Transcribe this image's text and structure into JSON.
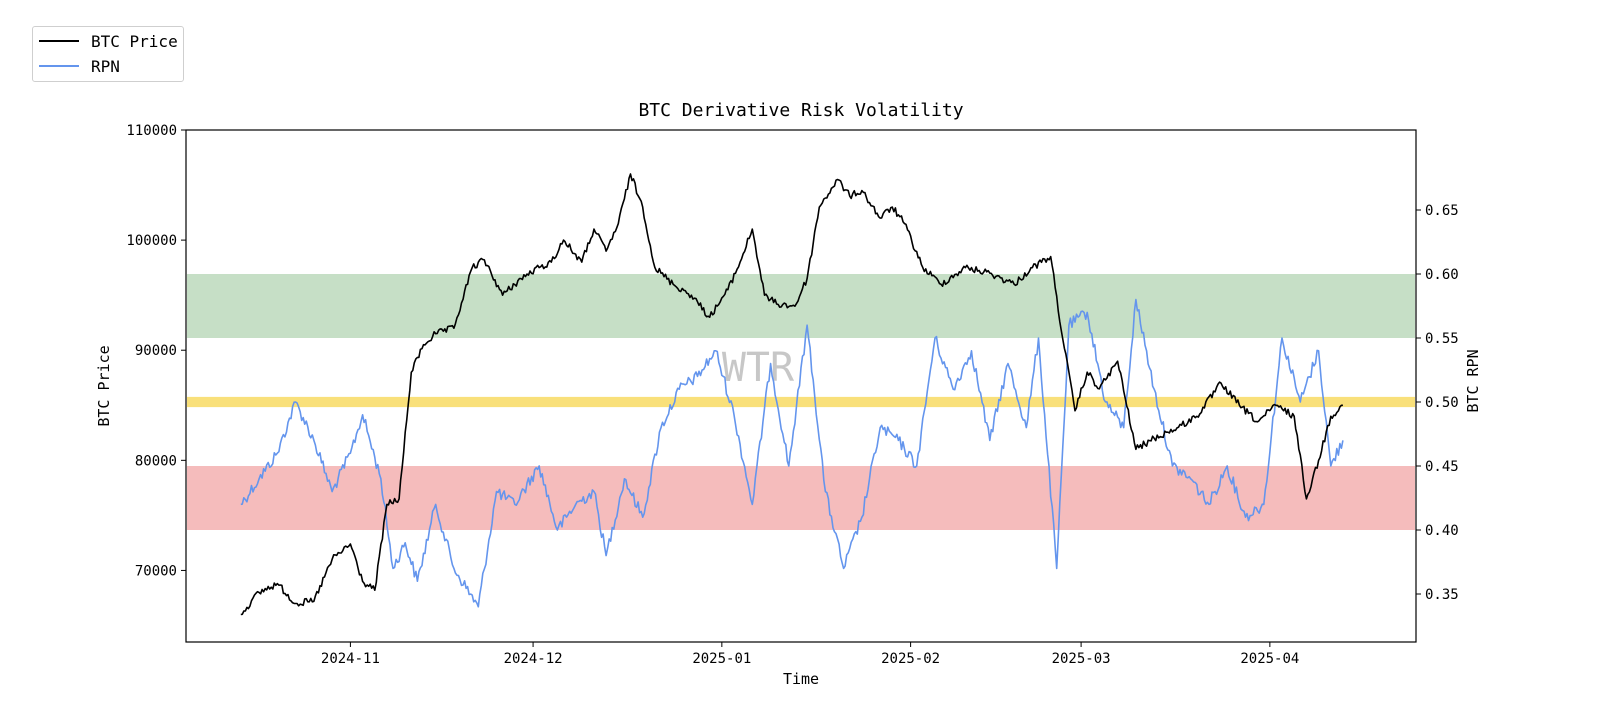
{
  "chart_data": {
    "type": "line",
    "title": "BTC Derivative Risk Volatility",
    "xlabel": "Time",
    "ylabel_left": "BTC Price",
    "ylabel_right": "BTC RPN",
    "watermark": "WTR",
    "legend_position": "top-left",
    "x_ticks": [
      "2024-11",
      "2024-12",
      "2025-01",
      "2025-02",
      "2025-03",
      "2025-04"
    ],
    "x_tick_dates": [
      "2024-11-01",
      "2024-12-01",
      "2025-01-01",
      "2025-02-01",
      "2025-03-01",
      "2025-04-01"
    ],
    "x_range": [
      "2024-10-05",
      "2025-04-25"
    ],
    "y_left": {
      "range": [
        63500,
        110000
      ],
      "ticks": [
        "70000",
        "80000",
        "90000",
        "100000",
        "110000"
      ],
      "tick_values": [
        70000,
        80000,
        90000,
        100000,
        110000
      ]
    },
    "y_right": {
      "range": [
        0.3125,
        0.7125
      ],
      "ticks": [
        "0.35",
        "0.40",
        "0.45",
        "0.50",
        "0.55",
        "0.60",
        "0.65"
      ],
      "tick_values": [
        0.35,
        0.4,
        0.45,
        0.5,
        0.55,
        0.6,
        0.65
      ]
    },
    "bands": [
      {
        "name": "green-band",
        "axis": "right",
        "from": 0.55,
        "to": 0.6,
        "color": "#c6dfc6"
      },
      {
        "name": "yellow-band",
        "axis": "right",
        "from": 0.496,
        "to": 0.504,
        "color": "#f9e07a"
      },
      {
        "name": "red-band",
        "axis": "right",
        "from": 0.4,
        "to": 0.45,
        "color": "#f5bcbc"
      }
    ],
    "series": [
      {
        "name": "BTC Price",
        "axis": "left",
        "color": "#000000",
        "x": [
          "2024-10-14",
          "2024-10-17",
          "2024-10-20",
          "2024-10-23",
          "2024-10-26",
          "2024-10-29",
          "2024-11-01",
          "2024-11-03",
          "2024-11-05",
          "2024-11-07",
          "2024-11-09",
          "2024-11-11",
          "2024-11-13",
          "2024-11-15",
          "2024-11-18",
          "2024-11-21",
          "2024-11-23",
          "2024-11-26",
          "2024-11-29",
          "2024-12-02",
          "2024-12-04",
          "2024-12-06",
          "2024-12-09",
          "2024-12-11",
          "2024-12-13",
          "2024-12-15",
          "2024-12-17",
          "2024-12-19",
          "2024-12-21",
          "2024-12-24",
          "2024-12-27",
          "2024-12-30",
          "2025-01-02",
          "2025-01-04",
          "2025-01-06",
          "2025-01-08",
          "2025-01-10",
          "2025-01-13",
          "2025-01-15",
          "2025-01-17",
          "2025-01-20",
          "2025-01-22",
          "2025-01-24",
          "2025-01-27",
          "2025-01-29",
          "2025-01-31",
          "2025-02-03",
          "2025-02-06",
          "2025-02-10",
          "2025-02-14",
          "2025-02-18",
          "2025-02-21",
          "2025-02-24",
          "2025-02-26",
          "2025-02-28",
          "2025-03-02",
          "2025-03-04",
          "2025-03-07",
          "2025-03-10",
          "2025-03-13",
          "2025-03-17",
          "2025-03-20",
          "2025-03-24",
          "2025-03-27",
          "2025-03-30",
          "2025-04-02",
          "2025-04-05",
          "2025-04-07",
          "2025-04-09",
          "2025-04-11",
          "2025-04-13"
        ],
        "values": [
          66000,
          68000,
          68800,
          67000,
          67200,
          71000,
          72400,
          69000,
          68200,
          76000,
          76500,
          88000,
          90500,
          91500,
          92000,
          97500,
          98200,
          95000,
          96500,
          97500,
          98000,
          100000,
          98000,
          101000,
          99000,
          101500,
          106000,
          103000,
          97500,
          96000,
          95000,
          93000,
          95500,
          98000,
          101000,
          95000,
          94200,
          94000,
          96500,
          103000,
          105500,
          104000,
          104500,
          102000,
          103000,
          101500,
          97500,
          96000,
          97500,
          97000,
          96000,
          97500,
          98500,
          91000,
          84500,
          88000,
          86500,
          89000,
          81000,
          82000,
          83000,
          84000,
          87000,
          85000,
          83500,
          85000,
          84000,
          76500,
          80000,
          84000,
          85000
        ]
      },
      {
        "name": "RPN",
        "axis": "right",
        "color": "#6495ed",
        "x": [
          "2024-10-14",
          "2024-10-17",
          "2024-10-20",
          "2024-10-23",
          "2024-10-26",
          "2024-10-29",
          "2024-11-01",
          "2024-11-03",
          "2024-11-06",
          "2024-11-08",
          "2024-11-10",
          "2024-11-12",
          "2024-11-15",
          "2024-11-18",
          "2024-11-22",
          "2024-11-25",
          "2024-11-28",
          "2024-12-02",
          "2024-12-05",
          "2024-12-08",
          "2024-12-11",
          "2024-12-13",
          "2024-12-16",
          "2024-12-19",
          "2024-12-22",
          "2024-12-25",
          "2024-12-28",
          "2024-12-31",
          "2025-01-03",
          "2025-01-06",
          "2025-01-09",
          "2025-01-12",
          "2025-01-15",
          "2025-01-18",
          "2025-01-21",
          "2025-01-24",
          "2025-01-27",
          "2025-01-30",
          "2025-02-02",
          "2025-02-05",
          "2025-02-08",
          "2025-02-11",
          "2025-02-14",
          "2025-02-17",
          "2025-02-20",
          "2025-02-22",
          "2025-02-25",
          "2025-02-27",
          "2025-03-02",
          "2025-03-05",
          "2025-03-08",
          "2025-03-10",
          "2025-03-13",
          "2025-03-16",
          "2025-03-19",
          "2025-03-22",
          "2025-03-25",
          "2025-03-28",
          "2025-03-31",
          "2025-04-03",
          "2025-04-06",
          "2025-04-09",
          "2025-04-11",
          "2025-04-13"
        ],
        "values": [
          0.42,
          0.44,
          0.46,
          0.5,
          0.47,
          0.43,
          0.46,
          0.49,
          0.44,
          0.37,
          0.39,
          0.36,
          0.42,
          0.37,
          0.34,
          0.43,
          0.42,
          0.45,
          0.4,
          0.42,
          0.43,
          0.38,
          0.44,
          0.41,
          0.48,
          0.51,
          0.52,
          0.54,
          0.49,
          0.42,
          0.53,
          0.45,
          0.56,
          0.43,
          0.37,
          0.41,
          0.48,
          0.47,
          0.45,
          0.55,
          0.51,
          0.54,
          0.47,
          0.53,
          0.48,
          0.55,
          0.37,
          0.56,
          0.57,
          0.5,
          0.48,
          0.58,
          0.51,
          0.45,
          0.44,
          0.42,
          0.45,
          0.41,
          0.42,
          0.55,
          0.5,
          0.54,
          0.45,
          0.47
        ]
      }
    ]
  }
}
